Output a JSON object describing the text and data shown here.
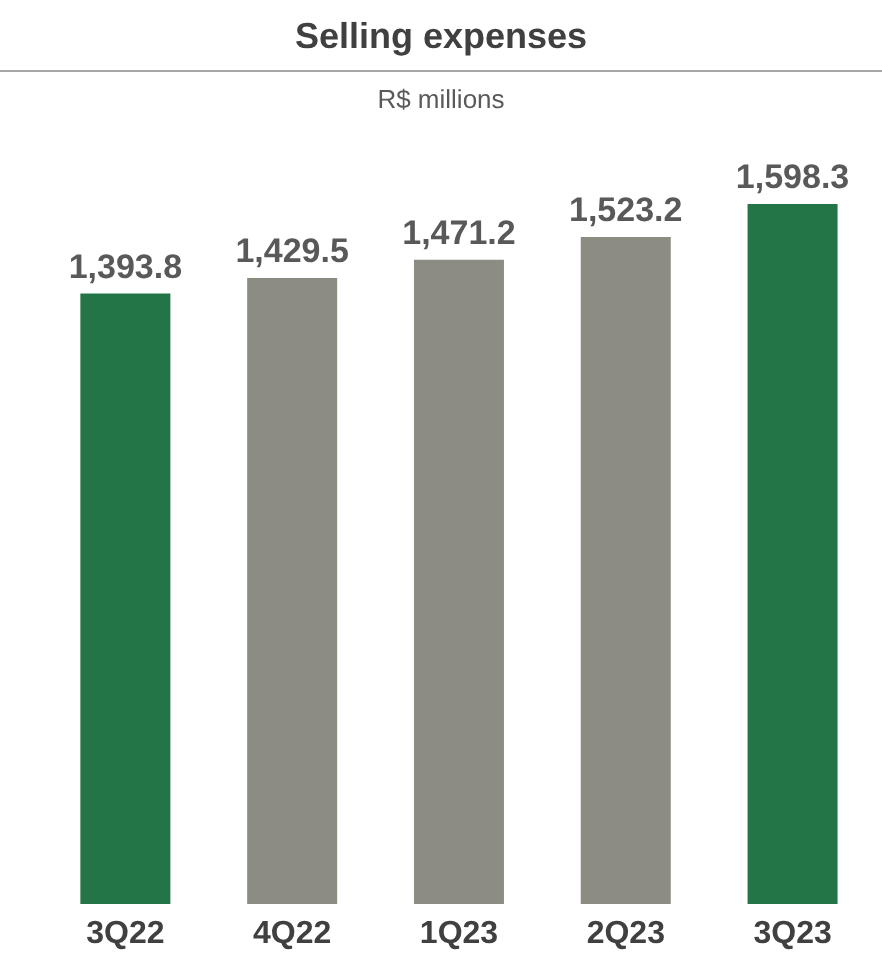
{
  "chart_data": {
    "type": "bar",
    "title": "Selling expenses",
    "subtitle": "R$ millions",
    "categories": [
      "3Q22",
      "4Q22",
      "1Q23",
      "2Q23",
      "3Q23"
    ],
    "values": [
      1393.8,
      1429.5,
      1471.2,
      1523.2,
      1598.3
    ],
    "colors": [
      "#237548",
      "#8c8c83",
      "#8c8c83",
      "#8c8c83",
      "#237548"
    ],
    "value_labels": [
      "1,393.8",
      "1,429.5",
      "1,471.2",
      "1,523.2",
      "1,598.3"
    ]
  }
}
